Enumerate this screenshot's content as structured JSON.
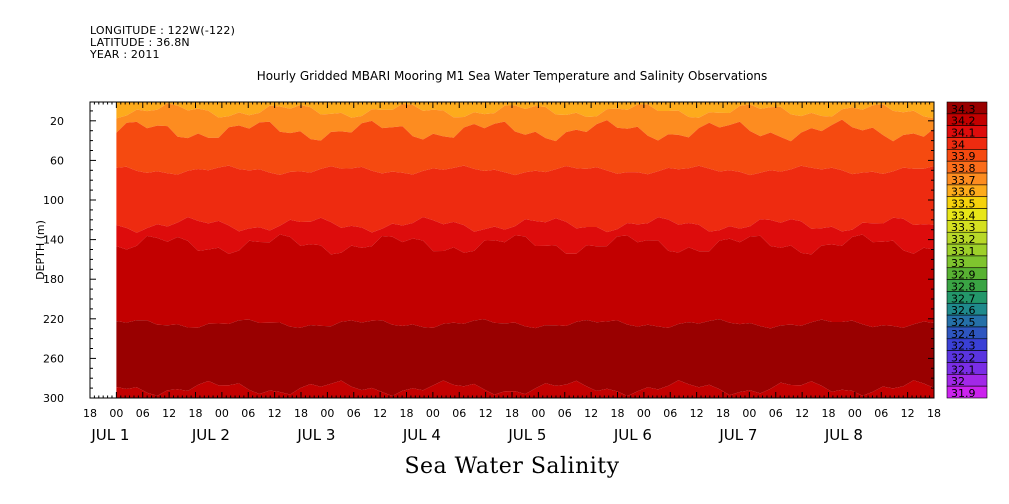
{
  "header": {
    "longitude": "LONGITUDE : 122W(-122)",
    "latitude": "LATITUDE : 36.8N",
    "year": "YEAR : 2011"
  },
  "chart_data": {
    "type": "heatmap",
    "title": "Hourly Gridded MBARI Mooring M1 Sea Water Temperature and Salinity Observations",
    "xlabel": "Sea Water Salinity",
    "ylabel": "DEPTH (m)",
    "y_axis": {
      "ylim": [
        300,
        1
      ],
      "inverted": true,
      "ticks": [
        20,
        60,
        100,
        140,
        180,
        220,
        260,
        300
      ]
    },
    "x_axis": {
      "unit": "hours since 2011-06-30 18:00",
      "xlim": [
        0,
        192
      ],
      "data_start_hour": 6,
      "tick_labels": [
        "18",
        "00",
        "06",
        "12",
        "18",
        "00",
        "06",
        "12",
        "18",
        "00",
        "06",
        "12",
        "18",
        "00",
        "06",
        "12",
        "18",
        "00",
        "06",
        "12",
        "18",
        "00",
        "06",
        "12",
        "18",
        "00",
        "06",
        "12",
        "18",
        "00",
        "06",
        "12",
        "18"
      ],
      "day_labels": [
        "JUL  1",
        "JUL  2",
        "JUL  3",
        "JUL  4",
        "JUL  5",
        "JUL  6",
        "JUL  7",
        "JUL  8"
      ]
    },
    "colorbar": {
      "labels": [
        "34.3",
        "34.2",
        "34.1",
        "34",
        "33.9",
        "33.8",
        "33.7",
        "33.6",
        "33.5",
        "33.4",
        "33.3",
        "33.2",
        "33.1",
        "33",
        "32.9",
        "32.8",
        "32.7",
        "32.6",
        "32.5",
        "32.4",
        "32.3",
        "32.2",
        "32.1",
        "32",
        "31.9"
      ],
      "colors": [
        "#990000",
        "#c20000",
        "#dd0c0c",
        "#ee2b10",
        "#f54a10",
        "#fb6c1a",
        "#fd8c20",
        "#fdab1c",
        "#f6d20c",
        "#e8e618",
        "#d4e020",
        "#b8d828",
        "#9ed02a",
        "#7fc42e",
        "#58b232",
        "#3aa444",
        "#23976a",
        "#1f8a8c",
        "#2570a8",
        "#2e56c0",
        "#3a40d6",
        "#5a34e0",
        "#7a2ee6",
        "#a228e8",
        "#cc22ee"
      ]
    },
    "depth_layers": [
      {
        "top": 1,
        "bottom": 10,
        "salinity": 33.6
      },
      {
        "top": 10,
        "bottom": 30,
        "salinity": 33.7
      },
      {
        "top": 30,
        "bottom": 70,
        "salinity": 33.9
      },
      {
        "top": 70,
        "bottom": 125,
        "salinity": 34.0
      },
      {
        "top": 125,
        "bottom": 145,
        "salinity": 34.1
      },
      {
        "top": 145,
        "bottom": 225,
        "salinity": 34.2
      },
      {
        "top": 225,
        "bottom": 290,
        "salinity": 34.3
      },
      {
        "top": 290,
        "bottom": 300,
        "salinity": 34.2
      }
    ]
  }
}
